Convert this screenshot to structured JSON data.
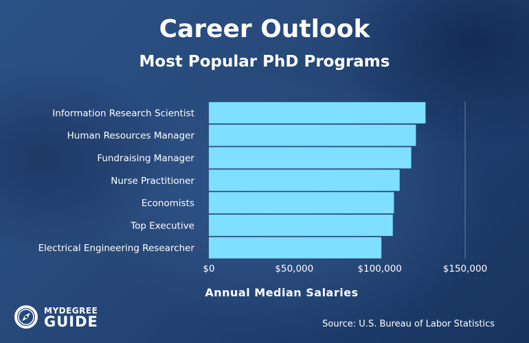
{
  "header": {
    "title": "Career Outlook",
    "subtitle": "Most Popular PhD Programs"
  },
  "chart_data": {
    "type": "bar",
    "orientation": "horizontal",
    "title": "Career Outlook",
    "subtitle": "Most Popular PhD Programs",
    "xlabel": "Annual Median Salaries",
    "ylabel": "",
    "categories": [
      "Information Research Scientist",
      "Human Resources Manager",
      "Fundraising Manager",
      "Nurse Practitioner",
      "Economists",
      "Top Executive",
      "Electrical Engineering Researcher"
    ],
    "values": [
      126830,
      121220,
      118470,
      111680,
      108350,
      107680,
      100990
    ],
    "xlim": [
      0,
      150000
    ],
    "xticks": [
      0,
      50000,
      100000,
      150000
    ],
    "xtick_labels": [
      "$0",
      "$50,000",
      "$100,000",
      "$150,000"
    ],
    "grid": "vertical line at $150,000",
    "bar_color": "#7fdfff"
  },
  "footer": {
    "source": "Source: U.S. Bureau of Labor Statistics",
    "logo_top": "MYDEGREE",
    "logo_bottom": "GUIDE"
  }
}
